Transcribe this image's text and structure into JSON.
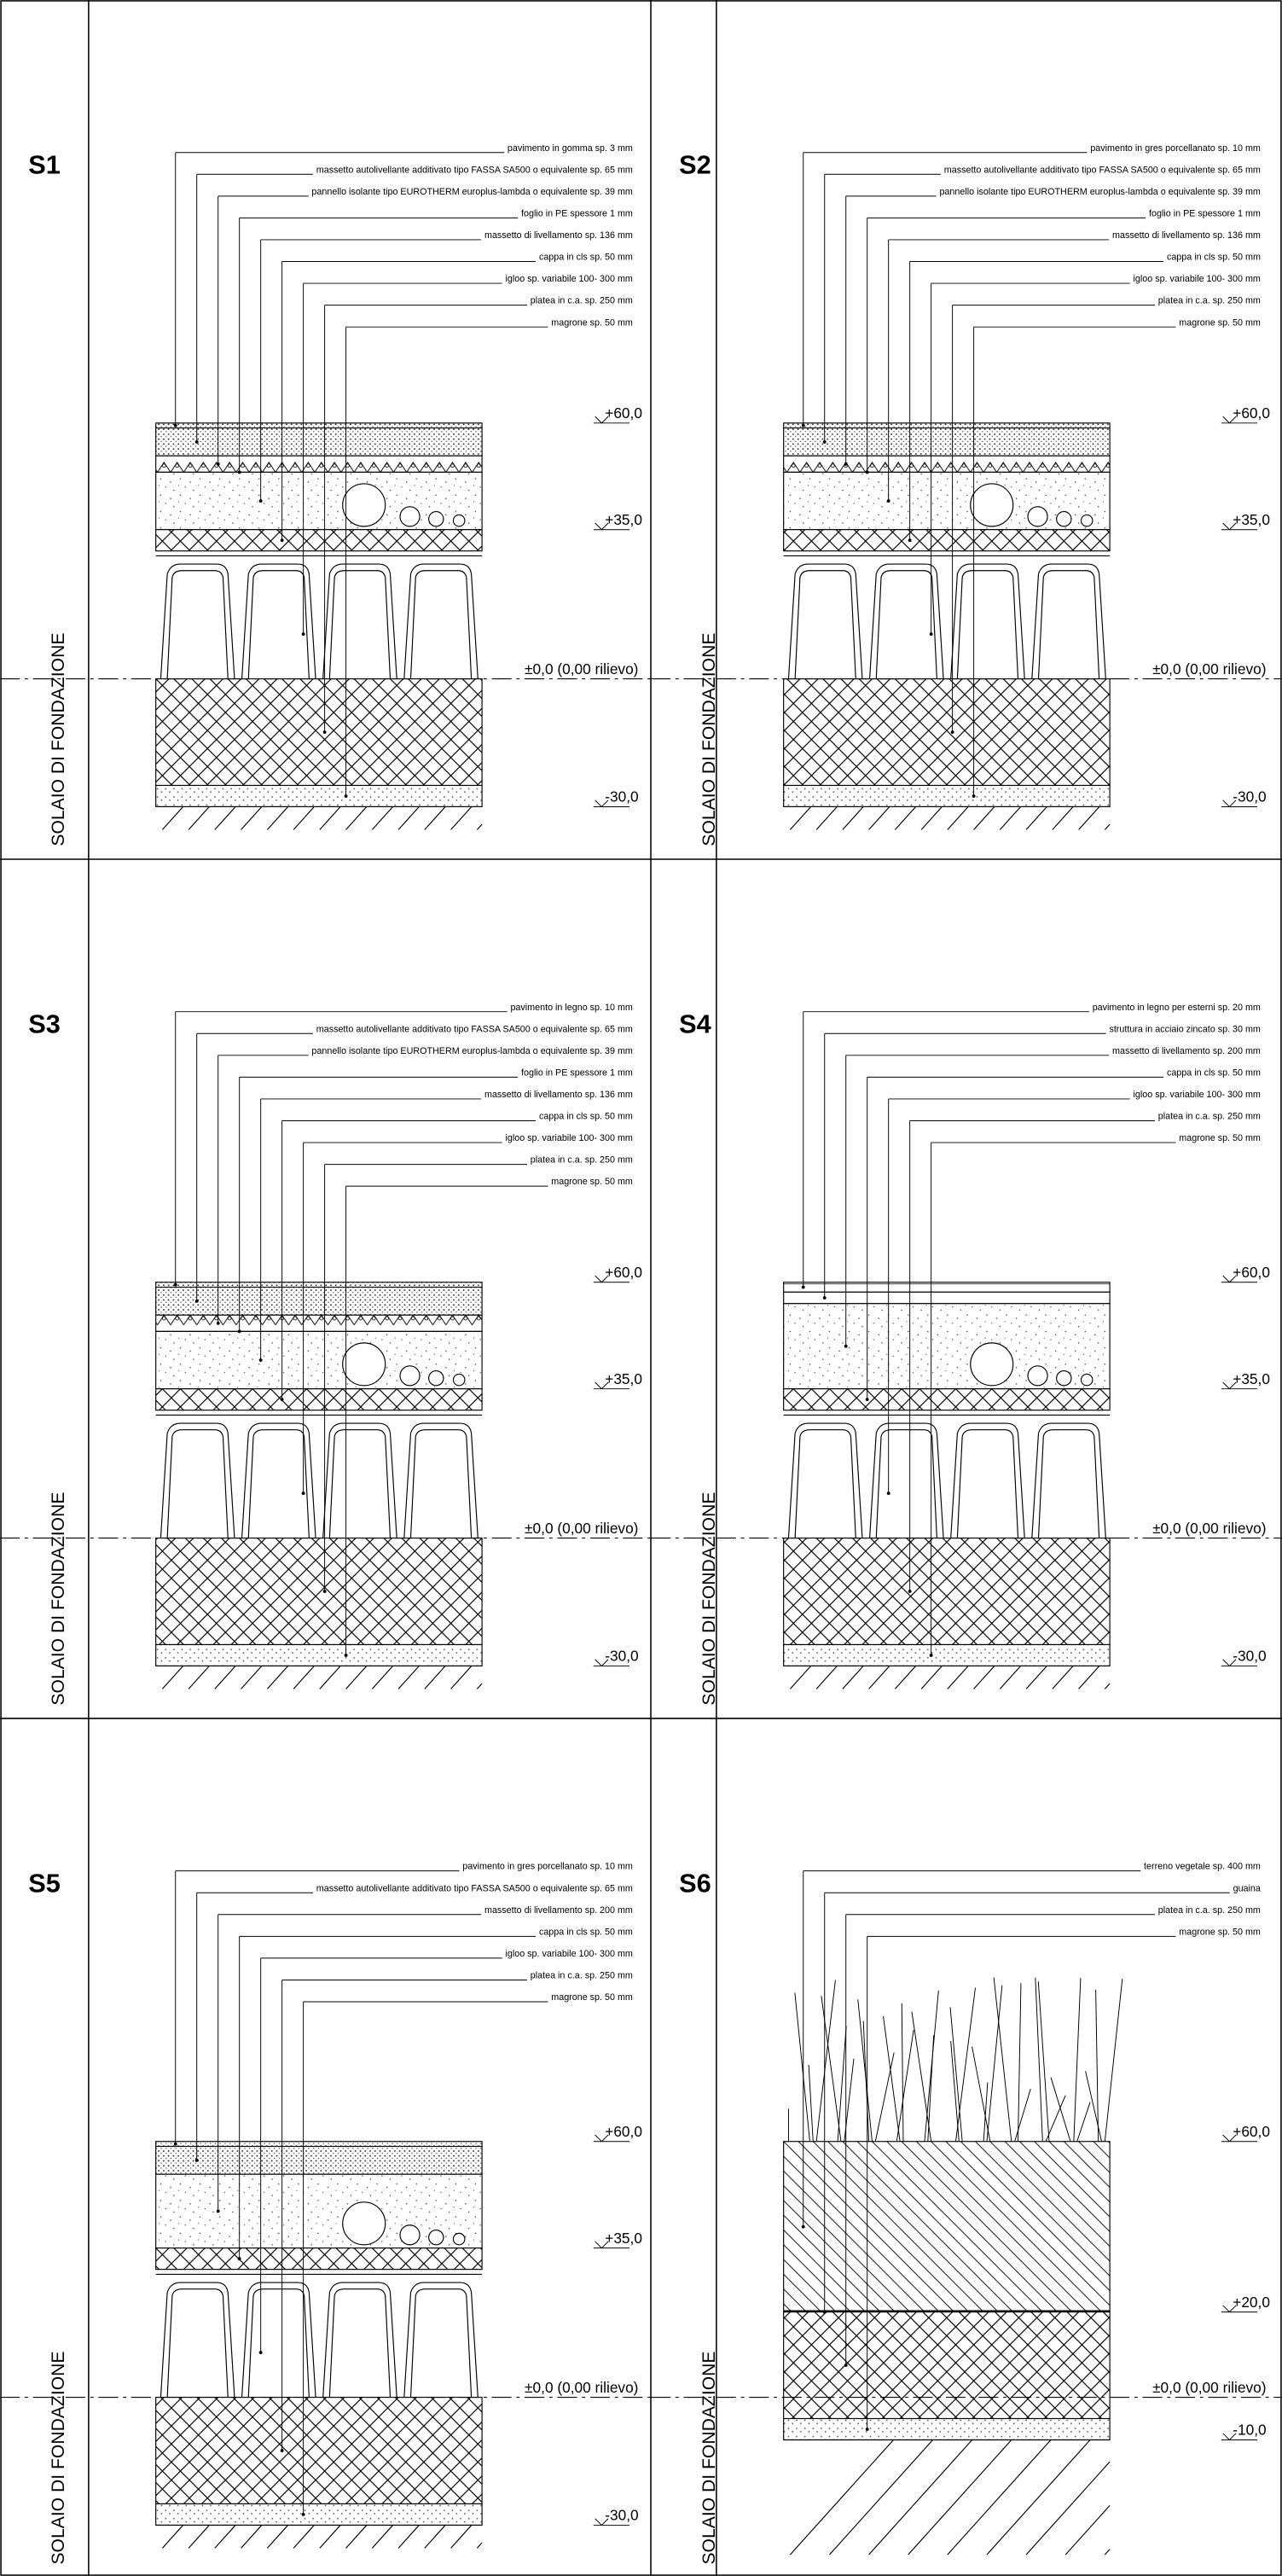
{
  "panels": [
    {
      "id": "S1",
      "side_label": "SOLAIO DI FONDAZIONE",
      "layers": [
        "pavimento in gomma sp. 3 mm",
        "massetto autolivellante additivato tipo FASSA SA500 o equivalente sp. 65 mm",
        "pannello isolante tipo EUROTHERM europlus-lambda o equivalente sp. 39 mm",
        "foglio in PE spessore 1 mm",
        "massetto di livellamento sp. 136 mm",
        "cappa in cls sp. 50 mm",
        "igloo sp. variabile 100- 300 mm",
        "platea in c.a. sp. 250 mm",
        "magrone sp. 50 mm"
      ],
      "levels": [
        "+60,0",
        "+35,0",
        "±0,0 (0,00 rilievo)",
        "-30,0"
      ]
    },
    {
      "id": "S2",
      "side_label": "SOLAIO DI FONDAZIONE",
      "layers": [
        "pavimento in gres porcellanato sp. 10 mm",
        "massetto autolivellante additivato tipo FASSA SA500 o equivalente sp. 65 mm",
        "pannello isolante tipo EUROTHERM europlus-lambda o equivalente sp. 39 mm",
        "foglio in PE spessore 1 mm",
        "massetto di livellamento sp. 136 mm",
        "cappa in cls sp. 50 mm",
        "igloo sp. variabile 100- 300 mm",
        "platea in c.a. sp. 250 mm",
        "magrone sp. 50 mm"
      ],
      "levels": [
        "+60,0",
        "+35,0",
        "±0,0 (0,00 rilievo)",
        "-30,0"
      ]
    },
    {
      "id": "S3",
      "side_label": "SOLAIO DI FONDAZIONE",
      "layers": [
        "pavimento in legno sp. 10 mm",
        "massetto autolivellante additivato tipo FASSA SA500 o equivalente sp. 65 mm",
        "pannello isolante tipo EUROTHERM europlus-lambda o equivalente sp. 39 mm",
        "foglio in PE spessore 1 mm",
        "massetto di livellamento sp. 136 mm",
        "cappa in cls sp. 50 mm",
        "igloo sp. variabile 100- 300 mm",
        "platea in c.a. sp. 250 mm",
        "magrone sp. 50 mm"
      ],
      "levels": [
        "+60,0",
        "+35,0",
        "±0,0 (0,00 rilievo)",
        "-30,0"
      ]
    },
    {
      "id": "S4",
      "side_label": "SOLAIO DI FONDAZIONE",
      "layers": [
        "pavimento in legno per esterni sp. 20 mm",
        "struttura in acciaio zincato sp. 30 mm",
        "massetto di livellamento sp. 200 mm",
        "cappa in cls sp. 50 mm",
        "igloo sp. variabile 100- 300 mm",
        "platea in c.a. sp. 250 mm",
        "magrone sp. 50 mm"
      ],
      "levels": [
        "+60,0",
        "+35,0",
        "±0,0 (0,00 rilievo)",
        "-30,0"
      ]
    },
    {
      "id": "S5",
      "side_label": "SOLAIO DI FONDAZIONE",
      "layers": [
        "pavimento in gres porcellanato sp. 10 mm",
        "massetto autolivellante additivato tipo FASSA SA500 o equivalente sp. 65 mm",
        "massetto di livellamento sp. 200 mm",
        "cappa in cls sp. 50 mm",
        "igloo sp. variabile 100- 300 mm",
        "platea in c.a. sp. 250 mm",
        "magrone sp. 50 mm"
      ],
      "levels": [
        "+60,0",
        "+35,0",
        "±0,0 (0,00 rilievo)",
        "-30,0"
      ]
    },
    {
      "id": "S6",
      "side_label": "SOLAIO DI FONDAZIONE",
      "layers": [
        "terreno vegetale sp. 400 mm",
        "guaina",
        "platea in c.a. sp. 250 mm",
        "magrone sp. 50 mm"
      ],
      "levels": [
        "+60,0",
        "+20,0",
        "±0,0 (0,00 rilievo)",
        "-10,0"
      ]
    }
  ]
}
